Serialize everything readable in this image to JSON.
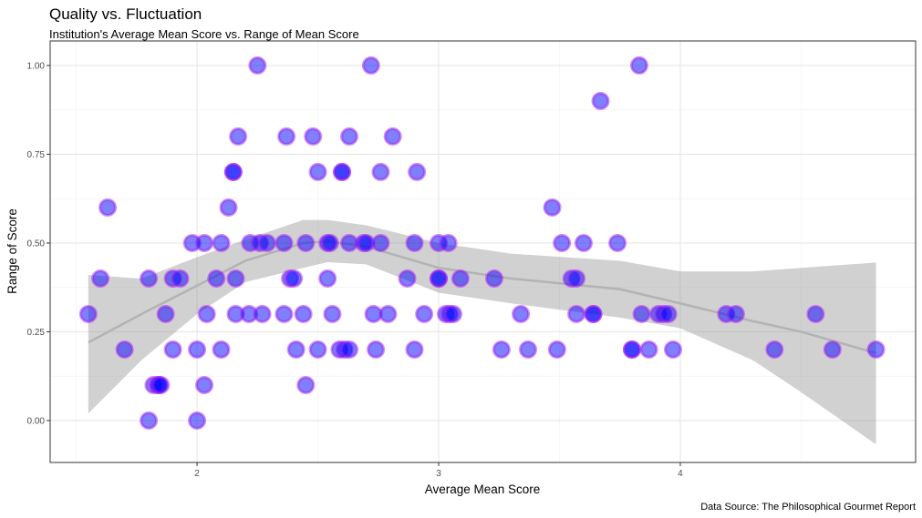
{
  "chart_data": {
    "type": "scatter",
    "title": "Quality vs. Fluctuation",
    "subtitle": "Institution's Average Mean Score vs. Range of Mean Score",
    "caption": "Data Source: The Philosophical Gourmet Report",
    "xlabel": "Average Mean Score",
    "ylabel": "Range of Score",
    "xlim": [
      1.392,
      4.974
    ],
    "ylim": [
      -0.118,
      1.069
    ],
    "xticks": [
      2,
      3,
      4
    ],
    "xtick_labels": [
      "2",
      "3",
      "4"
    ],
    "yticks": [
      0,
      0.25,
      0.5,
      0.75,
      1
    ],
    "ytick_labels": [
      "0.00",
      "0.25",
      "0.50",
      "0.75",
      "1.00"
    ],
    "grid": true,
    "point_fill": "#0000ff",
    "point_stroke": "#a020f0",
    "smooth_color": "#b3b3b3",
    "band_color": "#999999",
    "points": [
      [
        2.25,
        1.0
      ],
      [
        2.72,
        1.0
      ],
      [
        3.83,
        1.0
      ],
      [
        3.67,
        0.9
      ],
      [
        2.17,
        0.8
      ],
      [
        2.37,
        0.8
      ],
      [
        2.48,
        0.8
      ],
      [
        2.63,
        0.8
      ],
      [
        2.81,
        0.8
      ],
      [
        2.15,
        0.7
      ],
      [
        2.15,
        0.7
      ],
      [
        2.5,
        0.7
      ],
      [
        2.6,
        0.7
      ],
      [
        2.6,
        0.7
      ],
      [
        2.76,
        0.7
      ],
      [
        2.91,
        0.7
      ],
      [
        1.63,
        0.6
      ],
      [
        2.13,
        0.6
      ],
      [
        3.47,
        0.6
      ],
      [
        1.98,
        0.5
      ],
      [
        2.03,
        0.5
      ],
      [
        2.1,
        0.5
      ],
      [
        2.22,
        0.5
      ],
      [
        2.26,
        0.5
      ],
      [
        2.29,
        0.5
      ],
      [
        2.36,
        0.5
      ],
      [
        2.45,
        0.5
      ],
      [
        2.54,
        0.5
      ],
      [
        2.55,
        0.5
      ],
      [
        2.63,
        0.5
      ],
      [
        2.69,
        0.5
      ],
      [
        2.7,
        0.5
      ],
      [
        2.76,
        0.5
      ],
      [
        2.9,
        0.5
      ],
      [
        3.0,
        0.5
      ],
      [
        3.04,
        0.5
      ],
      [
        3.51,
        0.5
      ],
      [
        3.6,
        0.5
      ],
      [
        3.74,
        0.5
      ],
      [
        1.6,
        0.4
      ],
      [
        1.8,
        0.4
      ],
      [
        1.9,
        0.4
      ],
      [
        1.93,
        0.4
      ],
      [
        2.08,
        0.4
      ],
      [
        2.16,
        0.4
      ],
      [
        2.385,
        0.4
      ],
      [
        2.4,
        0.4
      ],
      [
        2.54,
        0.4
      ],
      [
        2.87,
        0.4
      ],
      [
        3.0,
        0.4
      ],
      [
        3.0,
        0.4
      ],
      [
        3.09,
        0.4
      ],
      [
        3.23,
        0.4
      ],
      [
        3.55,
        0.4
      ],
      [
        3.57,
        0.4
      ],
      [
        1.55,
        0.3
      ],
      [
        1.87,
        0.3
      ],
      [
        2.04,
        0.3
      ],
      [
        2.16,
        0.3
      ],
      [
        2.215,
        0.3
      ],
      [
        2.27,
        0.3
      ],
      [
        2.36,
        0.3
      ],
      [
        2.44,
        0.3
      ],
      [
        2.56,
        0.3
      ],
      [
        2.73,
        0.3
      ],
      [
        2.79,
        0.3
      ],
      [
        2.94,
        0.3
      ],
      [
        3.03,
        0.3
      ],
      [
        3.045,
        0.3
      ],
      [
        3.06,
        0.3
      ],
      [
        3.34,
        0.3
      ],
      [
        3.57,
        0.3
      ],
      [
        3.64,
        0.3
      ],
      [
        3.64,
        0.3
      ],
      [
        3.84,
        0.3
      ],
      [
        3.91,
        0.3
      ],
      [
        3.93,
        0.3
      ],
      [
        3.95,
        0.3
      ],
      [
        4.19,
        0.3
      ],
      [
        4.23,
        0.3
      ],
      [
        4.56,
        0.3
      ],
      [
        1.7,
        0.2
      ],
      [
        1.9,
        0.2
      ],
      [
        2.0,
        0.2
      ],
      [
        2.1,
        0.2
      ],
      [
        2.41,
        0.2
      ],
      [
        2.5,
        0.2
      ],
      [
        2.59,
        0.2
      ],
      [
        2.61,
        0.2
      ],
      [
        2.63,
        0.2
      ],
      [
        2.74,
        0.2
      ],
      [
        2.9,
        0.2
      ],
      [
        3.26,
        0.2
      ],
      [
        3.37,
        0.2
      ],
      [
        3.49,
        0.2
      ],
      [
        3.8,
        0.2
      ],
      [
        3.8,
        0.2
      ],
      [
        3.87,
        0.2
      ],
      [
        3.97,
        0.2
      ],
      [
        4.39,
        0.2
      ],
      [
        4.63,
        0.2
      ],
      [
        4.81,
        0.2
      ],
      [
        1.82,
        0.1
      ],
      [
        1.84,
        0.1
      ],
      [
        1.84,
        0.1
      ],
      [
        1.85,
        0.1
      ],
      [
        2.03,
        0.1
      ],
      [
        2.45,
        0.1
      ],
      [
        1.8,
        0.0
      ],
      [
        2.0,
        0.0
      ]
    ],
    "smooth": {
      "x": [
        1.55,
        1.77,
        2.0,
        2.2,
        2.44,
        2.54,
        2.7,
        3.0,
        3.3,
        3.75,
        4.0,
        4.3,
        4.5,
        4.81
      ],
      "y": [
        0.22,
        0.3,
        0.38,
        0.45,
        0.5,
        0.505,
        0.49,
        0.43,
        0.4,
        0.37,
        0.33,
        0.28,
        0.25,
        0.19
      ],
      "lower": [
        0.02,
        0.17,
        0.3,
        0.39,
        0.43,
        0.446,
        0.44,
        0.36,
        0.33,
        0.29,
        0.26,
        0.17,
        0.08,
        -0.067
      ],
      "upper": [
        0.41,
        0.4,
        0.46,
        0.51,
        0.565,
        0.565,
        0.55,
        0.5,
        0.47,
        0.45,
        0.42,
        0.42,
        0.43,
        0.445
      ]
    }
  }
}
